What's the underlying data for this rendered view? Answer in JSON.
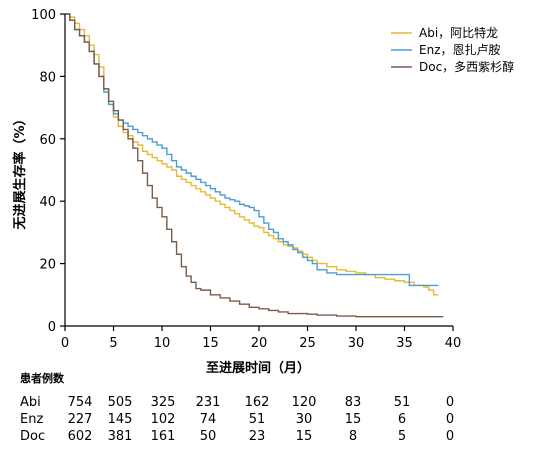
{
  "chart_data": {
    "type": "line",
    "ylabel": "无进展生存率（%）",
    "xlabel": "至进展时间（月）",
    "xlim": [
      0,
      40
    ],
    "ylim": [
      0,
      100
    ],
    "xticks": [
      "0",
      "5",
      "10",
      "15",
      "20",
      "25",
      "30",
      "35",
      "40"
    ],
    "yticks": [
      "0",
      "20",
      "40",
      "60",
      "80",
      "100"
    ],
    "legend_position": "top-right",
    "series": [
      {
        "name": "Abi，阿比特龙",
        "color": "#e8b934",
        "points": [
          [
            0,
            100
          ],
          [
            0.5,
            99
          ],
          [
            1,
            97
          ],
          [
            1.5,
            95
          ],
          [
            2,
            93
          ],
          [
            2.5,
            90
          ],
          [
            3,
            87
          ],
          [
            3.5,
            83
          ],
          [
            4,
            76
          ],
          [
            4.5,
            71
          ],
          [
            5,
            67
          ],
          [
            5.5,
            64
          ],
          [
            6,
            62
          ],
          [
            6.5,
            61
          ],
          [
            7,
            59
          ],
          [
            7.5,
            58
          ],
          [
            8,
            56
          ],
          [
            8.5,
            55
          ],
          [
            9,
            54
          ],
          [
            9.5,
            53
          ],
          [
            10,
            52
          ],
          [
            10.5,
            51
          ],
          [
            11,
            50
          ],
          [
            11.5,
            48
          ],
          [
            12,
            47
          ],
          [
            12.5,
            46
          ],
          [
            13,
            45
          ],
          [
            13.5,
            44
          ],
          [
            14,
            43
          ],
          [
            14.5,
            42
          ],
          [
            15,
            41
          ],
          [
            15.5,
            40
          ],
          [
            16,
            39
          ],
          [
            16.5,
            38
          ],
          [
            17,
            37
          ],
          [
            17.5,
            36
          ],
          [
            18,
            35
          ],
          [
            18.5,
            34
          ],
          [
            19,
            33
          ],
          [
            19.5,
            32
          ],
          [
            20,
            31.5
          ],
          [
            20.5,
            30
          ],
          [
            21,
            29
          ],
          [
            21.5,
            28
          ],
          [
            22,
            27
          ],
          [
            22.5,
            26
          ],
          [
            23,
            25.5
          ],
          [
            23.5,
            25
          ],
          [
            24,
            24
          ],
          [
            24.5,
            23
          ],
          [
            25,
            22
          ],
          [
            25.5,
            21
          ],
          [
            26,
            20
          ],
          [
            27,
            19
          ],
          [
            28,
            18
          ],
          [
            29,
            17.5
          ],
          [
            30,
            17
          ],
          [
            31,
            16.5
          ],
          [
            32,
            15.5
          ],
          [
            33,
            15
          ],
          [
            34,
            14.5
          ],
          [
            35,
            14
          ],
          [
            36,
            13
          ],
          [
            37,
            12.5
          ],
          [
            37.5,
            11.5
          ],
          [
            38,
            10
          ],
          [
            38.5,
            10
          ]
        ]
      },
      {
        "name": "Enz，恩扎卢胺",
        "color": "#4a9fd4",
        "points": [
          [
            0,
            100
          ],
          [
            0.5,
            98
          ],
          [
            1,
            95
          ],
          [
            1.5,
            93
          ],
          [
            2,
            91
          ],
          [
            2.5,
            88
          ],
          [
            3,
            84
          ],
          [
            3.5,
            80
          ],
          [
            4,
            75
          ],
          [
            4.5,
            71
          ],
          [
            5,
            68
          ],
          [
            5.5,
            66
          ],
          [
            6,
            65
          ],
          [
            6.5,
            64
          ],
          [
            7,
            63
          ],
          [
            7.5,
            62
          ],
          [
            8,
            61
          ],
          [
            8.5,
            60
          ],
          [
            9,
            59
          ],
          [
            9.5,
            58
          ],
          [
            10,
            57
          ],
          [
            10.5,
            55
          ],
          [
            11,
            53
          ],
          [
            11.5,
            51
          ],
          [
            12,
            50
          ],
          [
            12.5,
            49
          ],
          [
            13,
            48
          ],
          [
            13.5,
            47
          ],
          [
            14,
            46
          ],
          [
            14.5,
            45
          ],
          [
            15,
            44
          ],
          [
            15.5,
            43
          ],
          [
            16,
            42
          ],
          [
            16.5,
            41
          ],
          [
            17,
            40.5
          ],
          [
            17.5,
            40
          ],
          [
            18,
            39
          ],
          [
            18.5,
            38.5
          ],
          [
            19,
            38
          ],
          [
            19.5,
            37
          ],
          [
            20,
            35
          ],
          [
            20.5,
            33
          ],
          [
            21,
            31
          ],
          [
            21.5,
            30
          ],
          [
            22,
            28
          ],
          [
            22.5,
            27
          ],
          [
            23,
            26
          ],
          [
            23.5,
            24.5
          ],
          [
            24,
            23.5
          ],
          [
            24.5,
            22
          ],
          [
            25,
            21
          ],
          [
            25.5,
            20
          ],
          [
            26,
            18
          ],
          [
            27,
            17
          ],
          [
            28,
            16.5
          ],
          [
            30,
            16.5
          ],
          [
            32,
            16.5
          ],
          [
            35,
            16.5
          ],
          [
            35.5,
            13
          ],
          [
            37,
            13
          ],
          [
            38.5,
            13
          ]
        ]
      },
      {
        "name": "Doc，多西紫杉醇",
        "color": "#7a5c4d",
        "points": [
          [
            0,
            100
          ],
          [
            0.5,
            98
          ],
          [
            1,
            95
          ],
          [
            1.5,
            93
          ],
          [
            2,
            91
          ],
          [
            2.5,
            88
          ],
          [
            3,
            84
          ],
          [
            3.5,
            80
          ],
          [
            4,
            76
          ],
          [
            4.5,
            72
          ],
          [
            5,
            69
          ],
          [
            5.5,
            66
          ],
          [
            6,
            63
          ],
          [
            6.5,
            60
          ],
          [
            7,
            57
          ],
          [
            7.5,
            53
          ],
          [
            8,
            49
          ],
          [
            8.5,
            45
          ],
          [
            9,
            41
          ],
          [
            9.5,
            38
          ],
          [
            10,
            35
          ],
          [
            10.5,
            31
          ],
          [
            11,
            27
          ],
          [
            11.5,
            23
          ],
          [
            12,
            19
          ],
          [
            12.5,
            16
          ],
          [
            13,
            14
          ],
          [
            13.5,
            12
          ],
          [
            14,
            11.5
          ],
          [
            15,
            10
          ],
          [
            16,
            9
          ],
          [
            17,
            8
          ],
          [
            18,
            7
          ],
          [
            19,
            6
          ],
          [
            20,
            5.5
          ],
          [
            21,
            5
          ],
          [
            22,
            4.5
          ],
          [
            23,
            4
          ],
          [
            24,
            4
          ],
          [
            25,
            3.8
          ],
          [
            26,
            3.5
          ],
          [
            28,
            3.2
          ],
          [
            30,
            3
          ],
          [
            33,
            3
          ],
          [
            36,
            3
          ],
          [
            39,
            3
          ]
        ]
      }
    ],
    "risk_table": {
      "title": "患者例数",
      "rows": [
        {
          "label": "Abi",
          "values": [
            "754",
            "505",
            "325",
            "231",
            "162",
            "120",
            "83",
            "51",
            "0"
          ]
        },
        {
          "label": "Enz",
          "values": [
            "227",
            "145",
            "102",
            "74",
            "51",
            "30",
            "15",
            "6",
            "0"
          ]
        },
        {
          "label": "Doc",
          "values": [
            "602",
            "381",
            "161",
            "50",
            "23",
            "15",
            "8",
            "5",
            "0"
          ]
        }
      ]
    }
  }
}
